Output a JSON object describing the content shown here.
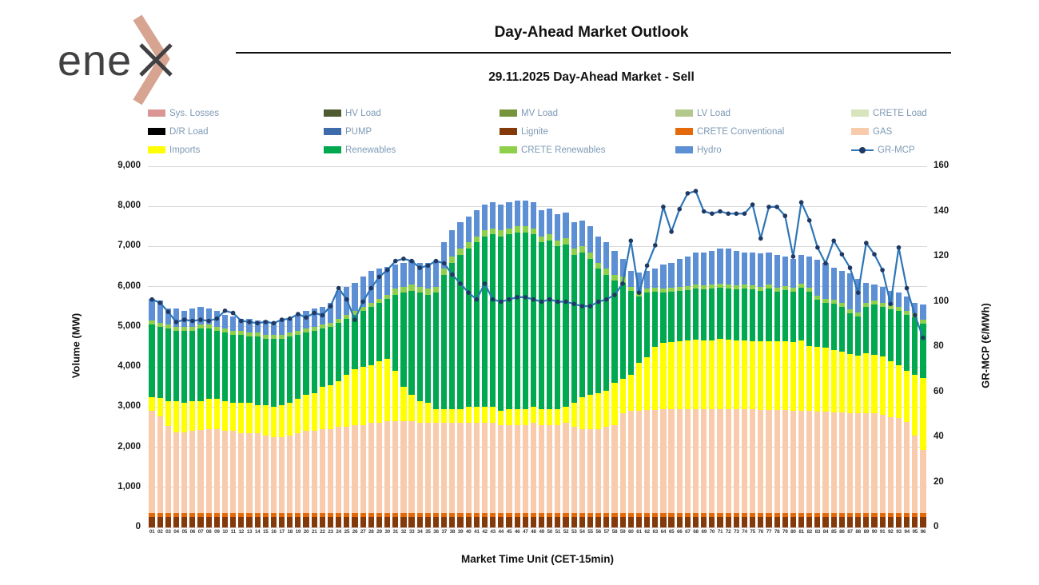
{
  "brand": {
    "logo_text": "ene",
    "logo_mark": "x-chevron"
  },
  "header": {
    "title": "Day-Ahead Market Outlook",
    "subtitle": "29.11.2025  Day-Ahead Market - Sell"
  },
  "colors": {
    "sys_losses": "#d99694",
    "hv_load": "#4e5b2f",
    "mv_load": "#77933c",
    "lv_load": "#b3c98c",
    "crete_load": "#d8e4bc",
    "dr_load": "#000000",
    "pump": "#3e6cab",
    "lignite": "#84390b",
    "crete_conventional": "#e3690b",
    "gas": "#f8cbad",
    "imports": "#ffff00",
    "renewables": "#00a84f",
    "crete_renewables": "#8ed04c",
    "hydro": "#5d8fd4",
    "line": "#2e75b6",
    "marker": "#1f3864",
    "grid": "#d9d9d9",
    "legend_text": "#7d9ab5"
  },
  "legend": [
    {
      "key": "sys_losses",
      "label": "Sys. Losses",
      "type": "box"
    },
    {
      "key": "hv_load",
      "label": "HV Load",
      "type": "box"
    },
    {
      "key": "mv_load",
      "label": "MV Load",
      "type": "box"
    },
    {
      "key": "lv_load",
      "label": "LV Load",
      "type": "box"
    },
    {
      "key": "crete_load",
      "label": "CRETE Load",
      "type": "box"
    },
    {
      "key": "dr_load",
      "label": "D/R Load",
      "type": "box"
    },
    {
      "key": "pump",
      "label": "PUMP",
      "type": "box"
    },
    {
      "key": "lignite",
      "label": "Lignite",
      "type": "box"
    },
    {
      "key": "crete_conventional",
      "label": "CRETE Conventional",
      "type": "box"
    },
    {
      "key": "gas",
      "label": "GAS",
      "type": "box"
    },
    {
      "key": "imports",
      "label": "Imports",
      "type": "box"
    },
    {
      "key": "renewables",
      "label": "Renewables",
      "type": "box"
    },
    {
      "key": "crete_renewables",
      "label": "CRETE Renewables",
      "type": "box"
    },
    {
      "key": "hydro",
      "label": "Hydro",
      "type": "box"
    },
    {
      "key": "gr_mcp",
      "label": "GR-MCP",
      "type": "line"
    }
  ],
  "chart_data": {
    "type": "combo-stacked-bar-line",
    "title": "29.11.2025 Day-Ahead Market - Sell",
    "x_label": "Market Time Unit (CET-15min)",
    "y_left": {
      "label": "Volume (MW)",
      "min": 0,
      "max": 9000,
      "step": 1000
    },
    "y_right": {
      "label": "GR-MCP (€/MWh)",
      "min": 0,
      "max": 160,
      "step": 20
    },
    "grid": "horizontal",
    "legend_position": "top",
    "categories": [
      "01",
      "02",
      "03",
      "04",
      "05",
      "06",
      "07",
      "08",
      "09",
      "10",
      "11",
      "12",
      "13",
      "14",
      "15",
      "16",
      "17",
      "18",
      "19",
      "20",
      "21",
      "22",
      "23",
      "24",
      "25",
      "26",
      "27",
      "28",
      "29",
      "30",
      "31",
      "32",
      "33",
      "34",
      "35",
      "36",
      "37",
      "38",
      "39",
      "40",
      "41",
      "42",
      "43",
      "44",
      "45",
      "46",
      "47",
      "48",
      "49",
      "50",
      "51",
      "52",
      "53",
      "54",
      "55",
      "56",
      "57",
      "58",
      "59",
      "60",
      "61",
      "62",
      "63",
      "64",
      "65",
      "66",
      "67",
      "68",
      "69",
      "70",
      "71",
      "72",
      "73",
      "74",
      "75",
      "76",
      "77",
      "78",
      "79",
      "80",
      "81",
      "82",
      "83",
      "84",
      "85",
      "86",
      "87",
      "88",
      "89",
      "90",
      "91",
      "92",
      "93",
      "94",
      "95",
      "96"
    ],
    "series": [
      {
        "name": "Lignite",
        "key": "lignite",
        "constant": 250
      },
      {
        "name": "CRETE Conventional",
        "key": "crete_conventional",
        "constant": 110
      },
      {
        "name": "GAS",
        "key": "gas",
        "values": [
          2540,
          2410,
          2160,
          2020,
          2020,
          2040,
          2070,
          2090,
          2090,
          2040,
          2040,
          1990,
          1990,
          1990,
          1940,
          1890,
          1890,
          1940,
          1990,
          2040,
          2040,
          2090,
          2090,
          2140,
          2140,
          2190,
          2190,
          2240,
          2240,
          2290,
          2290,
          2290,
          2290,
          2240,
          2240,
          2240,
          2240,
          2240,
          2240,
          2240,
          2240,
          2240,
          2240,
          2190,
          2190,
          2190,
          2190,
          2240,
          2190,
          2190,
          2190,
          2240,
          2140,
          2090,
          2090,
          2090,
          2140,
          2190,
          2490,
          2540,
          2540,
          2560,
          2570,
          2580,
          2580,
          2590,
          2590,
          2590,
          2590,
          2590,
          2590,
          2590,
          2580,
          2580,
          2580,
          2570,
          2570,
          2560,
          2560,
          2550,
          2540,
          2540,
          2530,
          2520,
          2510,
          2500,
          2490,
          2490,
          2480,
          2480,
          2440,
          2380,
          2370,
          2260,
          1940,
          1580
        ]
      },
      {
        "name": "Imports",
        "key": "imports",
        "values": [
          350,
          460,
          630,
          770,
          720,
          750,
          720,
          750,
          750,
          750,
          700,
          750,
          750,
          700,
          750,
          750,
          800,
          800,
          850,
          900,
          950,
          1050,
          1100,
          1150,
          1300,
          1400,
          1450,
          1450,
          1550,
          1550,
          1250,
          850,
          650,
          550,
          500,
          350,
          350,
          350,
          350,
          400,
          400,
          400,
          400,
          350,
          400,
          400,
          400,
          400,
          400,
          400,
          400,
          400,
          600,
          800,
          850,
          900,
          900,
          1050,
          850,
          900,
          1200,
          1330,
          1570,
          1660,
          1680,
          1700,
          1710,
          1730,
          1710,
          1710,
          1750,
          1730,
          1720,
          1720,
          1710,
          1720,
          1720,
          1720,
          1720,
          1710,
          1760,
          1620,
          1610,
          1600,
          1550,
          1520,
          1470,
          1430,
          1500,
          1460,
          1470,
          1410,
          1320,
          1280,
          1500,
          1780
        ]
      },
      {
        "name": "Renewables",
        "key": "renewables",
        "values": [
          1800,
          1770,
          1800,
          1750,
          1800,
          1750,
          1800,
          1750,
          1700,
          1700,
          1700,
          1700,
          1650,
          1700,
          1650,
          1700,
          1650,
          1650,
          1600,
          1550,
          1550,
          1450,
          1450,
          1450,
          1400,
          1350,
          1400,
          1450,
          1450,
          1500,
          1900,
          2350,
          2600,
          2700,
          2700,
          2900,
          3350,
          3650,
          3850,
          3950,
          4100,
          4250,
          4300,
          4350,
          4350,
          4400,
          4400,
          4300,
          4150,
          4200,
          4050,
          4050,
          3700,
          3600,
          3400,
          3100,
          2900,
          2550,
          2400,
          2100,
          1650,
          1600,
          1370,
          1250,
          1250,
          1250,
          1260,
          1270,
          1270,
          1290,
          1270,
          1270,
          1280,
          1300,
          1280,
          1250,
          1300,
          1240,
          1280,
          1250,
          1310,
          1360,
          1170,
          1120,
          1150,
          1120,
          1010,
          970,
          1160,
          1260,
          1230,
          1280,
          1350,
          1400,
          1440,
          1360
        ]
      },
      {
        "name": "CRETE Renewables",
        "key": "crete_renewables",
        "values": [
          100,
          100,
          100,
          100,
          100,
          100,
          100,
          100,
          100,
          100,
          100,
          100,
          100,
          100,
          100,
          100,
          100,
          100,
          100,
          100,
          100,
          100,
          100,
          100,
          100,
          100,
          100,
          100,
          100,
          100,
          150,
          150,
          150,
          150,
          150,
          150,
          150,
          150,
          150,
          150,
          150,
          150,
          150,
          150,
          150,
          150,
          150,
          150,
          150,
          150,
          150,
          150,
          150,
          150,
          150,
          150,
          150,
          150,
          150,
          100,
          100,
          100,
          100,
          100,
          100,
          100,
          100,
          100,
          100,
          100,
          100,
          100,
          100,
          100,
          100,
          100,
          100,
          100,
          100,
          100,
          100,
          100,
          100,
          100,
          100,
          100,
          100,
          100,
          100,
          100,
          100,
          100,
          100,
          100,
          100,
          100
        ]
      },
      {
        "name": "Hydro",
        "key": "hydro",
        "values": [
          550,
          550,
          400,
          450,
          400,
          450,
          450,
          400,
          400,
          350,
          350,
          300,
          350,
          300,
          350,
          300,
          350,
          350,
          400,
          450,
          450,
          450,
          500,
          700,
          700,
          700,
          750,
          800,
          750,
          700,
          600,
          600,
          600,
          600,
          650,
          650,
          650,
          650,
          650,
          650,
          650,
          650,
          650,
          650,
          650,
          650,
          650,
          650,
          650,
          650,
          650,
          650,
          650,
          650,
          650,
          650,
          650,
          600,
          450,
          400,
          500,
          450,
          480,
          600,
          630,
          700,
          730,
          800,
          820,
          850,
          880,
          900,
          860,
          790,
          830,
          830,
          810,
          820,
          740,
          730,
          730,
          770,
          900,
          900,
          810,
          800,
          900,
          850,
          500,
          390,
          400,
          370,
          350,
          350,
          260,
          370
        ]
      }
    ],
    "line": {
      "name": "GR-MCP",
      "values": [
        101,
        99.5,
        95.5,
        91,
        92,
        91.5,
        92,
        91.5,
        92.5,
        96,
        95,
        91.5,
        91,
        90.5,
        91,
        90.5,
        92,
        92.5,
        94.5,
        93,
        95,
        94,
        98,
        106,
        101,
        92,
        100,
        106,
        111,
        114,
        118,
        119,
        118,
        115,
        116,
        118,
        117,
        112,
        108,
        104,
        101,
        108,
        101,
        100,
        101,
        102,
        102,
        101,
        100,
        101,
        100,
        100,
        99,
        98,
        98,
        100,
        101,
        103,
        108,
        127,
        104,
        116,
        125,
        142,
        131,
        141,
        148,
        149,
        140,
        139,
        140,
        139,
        139,
        139,
        143,
        128,
        142,
        142,
        138,
        120,
        144,
        136,
        124,
        117,
        127,
        121,
        115,
        104,
        126,
        121,
        114,
        99,
        124,
        106,
        94,
        84
      ]
    }
  }
}
